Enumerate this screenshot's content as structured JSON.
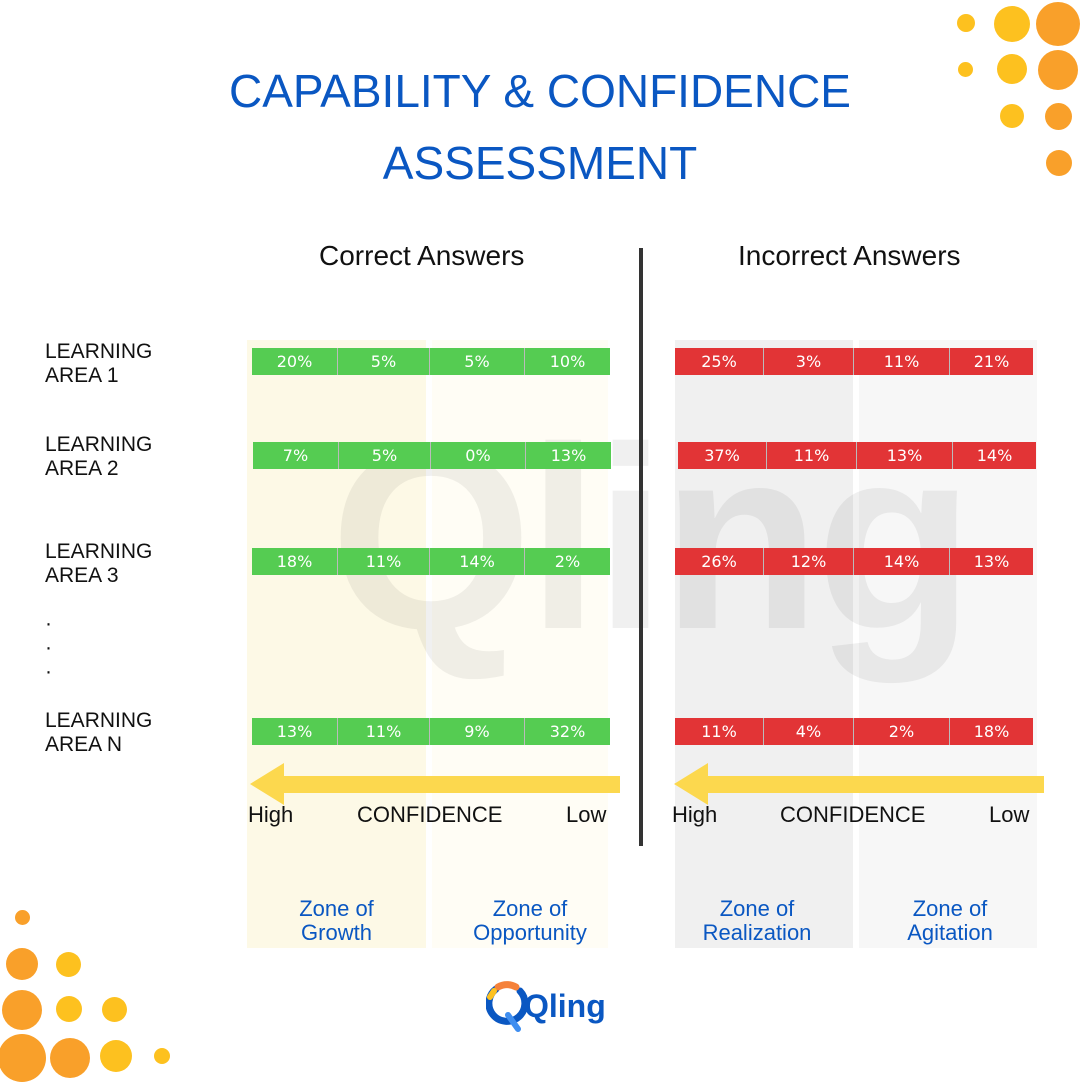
{
  "title": {
    "line1": "CAPABILITY & CONFIDENCE",
    "line2": "ASSESSMENT"
  },
  "columns": {
    "correct": "Correct Answers",
    "incorrect": "Incorrect Answers"
  },
  "colors": {
    "correct": "#55cc52",
    "incorrect": "#e23436",
    "accent": "#0a57c2",
    "arrow": "#fcd84e"
  },
  "rows": [
    {
      "label1": "LEARNING",
      "label2": "AREA 1",
      "correct": [
        "20%",
        "5%",
        "5%",
        "10%"
      ],
      "incorrect": [
        "25%",
        "3%",
        "11%",
        "21%"
      ]
    },
    {
      "label1": "LEARNING",
      "label2": "AREA 2",
      "correct": [
        "7%",
        "5%",
        "0%",
        "13%"
      ],
      "incorrect": [
        "37%",
        "11%",
        "13%",
        "14%"
      ]
    },
    {
      "label1": "LEARNING",
      "label2": "AREA 3",
      "correct": [
        "18%",
        "11%",
        "14%",
        "2%"
      ],
      "incorrect": [
        "26%",
        "12%",
        "14%",
        "13%"
      ]
    },
    {
      "label1": "LEARNING",
      "label2": "AREA N",
      "correct": [
        "13%",
        "11%",
        "9%",
        "32%"
      ],
      "incorrect": [
        "11%",
        "4%",
        "2%",
        "18%"
      ]
    }
  ],
  "ellipsis": [
    "·",
    "·",
    "·"
  ],
  "axis": {
    "high": "High",
    "label": "CONFIDENCE",
    "low": "Low"
  },
  "zones": [
    {
      "line1": "Zone of",
      "line2": "Growth"
    },
    {
      "line1": "Zone of",
      "line2": "Opportunity"
    },
    {
      "line1": "Zone of",
      "line2": "Realization"
    },
    {
      "line1": "Zone of",
      "line2": "Agitation"
    }
  ],
  "logo": "Qling"
}
